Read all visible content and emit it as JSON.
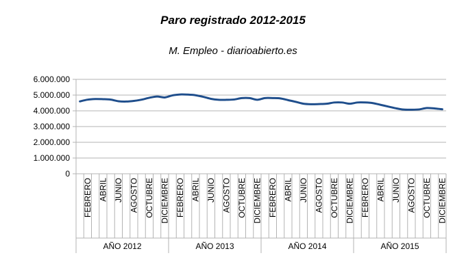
{
  "chart_data": {
    "type": "line",
    "title": "Paro registrado 2012-2015",
    "subtitle": "M. Empleo - diarioabierto.es",
    "ylim": [
      0,
      6000000
    ],
    "y_ticks": [
      "6.000.000",
      "5.000.000",
      "4.000.000",
      "3.000.000",
      "2.000.000",
      "1.000.000",
      "0"
    ],
    "grid": true,
    "legend": "none",
    "line_color": "#1f4e8c",
    "groups": [
      {
        "label": "AÑO 2012",
        "month_labels": [
          "FEBRERO",
          "ABRIL",
          "JUNIO",
          "AGOSTO",
          "OCTUBRE",
          "DICIEMBRE"
        ]
      },
      {
        "label": "AÑO 2013",
        "month_labels": [
          "FEBRERO",
          "ABRIL",
          "JUNIO",
          "AGOSTO",
          "OCTUBRE",
          "DICIEMBRE"
        ]
      },
      {
        "label": "AÑO 2014",
        "month_labels": [
          "FEBRERO",
          "ABRIL",
          "JUNIO",
          "AGOSTO",
          "OCTUBRE",
          "DICIEMBRE"
        ]
      },
      {
        "label": "AÑO 2015",
        "month_labels": [
          "FEBRERO",
          "ABRIL",
          "JUNIO",
          "AGOSTO",
          "OCTUBRE",
          "DICIEMBRE"
        ]
      }
    ],
    "values": [
      4600000,
      4710000,
      4750000,
      4740000,
      4710000,
      4610000,
      4590000,
      4630000,
      4710000,
      4830000,
      4910000,
      4850000,
      4980000,
      5040000,
      5030000,
      4990000,
      4890000,
      4760000,
      4700000,
      4700000,
      4720000,
      4810000,
      4810000,
      4700000,
      4810000,
      4810000,
      4790000,
      4680000,
      4570000,
      4450000,
      4420000,
      4430000,
      4450000,
      4530000,
      4530000,
      4450000,
      4530000,
      4530000,
      4490000,
      4380000,
      4270000,
      4160000,
      4080000,
      4070000,
      4090000,
      4180000,
      4150000,
      4100000
    ]
  }
}
